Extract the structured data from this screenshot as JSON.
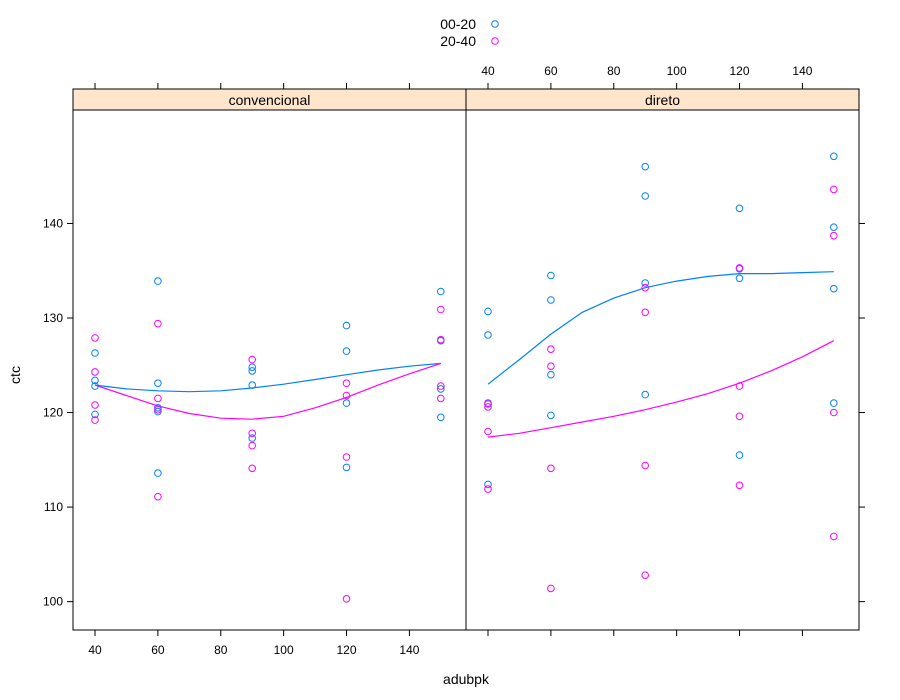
{
  "chart_data": {
    "type": "scatter",
    "xlabel": "adubpk",
    "ylabel": "ctc",
    "xlim": [
      33,
      158
    ],
    "ylim": [
      97,
      152
    ],
    "x_ticks": [
      40,
      60,
      80,
      100,
      120,
      140
    ],
    "y_ticks": [
      100,
      110,
      120,
      130,
      140
    ],
    "grid": false,
    "legend_placement": "top",
    "series": [
      {
        "name": "00-20",
        "color": "#0080ff"
      },
      {
        "name": "20-40",
        "color": "#ff00ff"
      }
    ],
    "panels": [
      {
        "strip": "convencional",
        "points": {
          "00-20": [
            [
              40,
              126.3
            ],
            [
              40,
              123.4
            ],
            [
              40,
              122.8
            ],
            [
              40,
              119.8
            ],
            [
              60,
              133.9
            ],
            [
              60,
              123.1
            ],
            [
              60,
              120.5
            ],
            [
              60,
              120.1
            ],
            [
              60,
              113.6
            ],
            [
              90,
              124.8
            ],
            [
              90,
              124.4
            ],
            [
              90,
              122.9
            ],
            [
              90,
              117.3
            ],
            [
              120,
              129.2
            ],
            [
              120,
              126.5
            ],
            [
              120,
              121.0
            ],
            [
              120,
              114.2
            ],
            [
              150,
              132.8
            ],
            [
              150,
              127.6
            ],
            [
              150,
              122.5
            ],
            [
              150,
              119.5
            ]
          ],
          "20-40": [
            [
              40,
              127.9
            ],
            [
              40,
              124.3
            ],
            [
              40,
              120.8
            ],
            [
              40,
              119.2
            ],
            [
              60,
              129.4
            ],
            [
              60,
              121.5
            ],
            [
              60,
              120.3
            ],
            [
              60,
              111.1
            ],
            [
              90,
              125.6
            ],
            [
              90,
              117.8
            ],
            [
              90,
              116.5
            ],
            [
              90,
              114.1
            ],
            [
              120,
              123.1
            ],
            [
              120,
              121.8
            ],
            [
              120,
              115.3
            ],
            [
              120,
              100.3
            ],
            [
              150,
              130.9
            ],
            [
              150,
              127.7
            ],
            [
              150,
              122.8
            ],
            [
              150,
              121.5
            ]
          ]
        },
        "smooth": {
          "00-20": [
            [
              40,
              122.9
            ],
            [
              50,
              122.5
            ],
            [
              60,
              122.3
            ],
            [
              70,
              122.2
            ],
            [
              80,
              122.3
            ],
            [
              90,
              122.6
            ],
            [
              100,
              123.0
            ],
            [
              110,
              123.5
            ],
            [
              120,
              124.0
            ],
            [
              130,
              124.5
            ],
            [
              140,
              124.9
            ],
            [
              150,
              125.2
            ]
          ],
          "20-40": [
            [
              40,
              122.9
            ],
            [
              50,
              121.8
            ],
            [
              60,
              120.7
            ],
            [
              70,
              119.9
            ],
            [
              80,
              119.4
            ],
            [
              90,
              119.3
            ],
            [
              100,
              119.6
            ],
            [
              110,
              120.5
            ],
            [
              120,
              121.6
            ],
            [
              130,
              122.9
            ],
            [
              140,
              124.1
            ],
            [
              150,
              125.2
            ]
          ]
        }
      },
      {
        "strip": "direto",
        "points": {
          "00-20": [
            [
              40,
              130.7
            ],
            [
              40,
              128.2
            ],
            [
              40,
              120.9
            ],
            [
              40,
              112.4
            ],
            [
              60,
              134.5
            ],
            [
              60,
              131.9
            ],
            [
              60,
              124.0
            ],
            [
              60,
              119.7
            ],
            [
              90,
              146.0
            ],
            [
              90,
              142.9
            ],
            [
              90,
              133.7
            ],
            [
              90,
              121.9
            ],
            [
              120,
              141.6
            ],
            [
              120,
              135.2
            ],
            [
              120,
              134.2
            ],
            [
              120,
              115.5
            ],
            [
              150,
              147.1
            ],
            [
              150,
              139.6
            ],
            [
              150,
              133.1
            ],
            [
              150,
              121.0
            ]
          ],
          "20-40": [
            [
              40,
              121.0
            ],
            [
              40,
              120.6
            ],
            [
              40,
              118.0
            ],
            [
              40,
              111.9
            ],
            [
              60,
              126.7
            ],
            [
              60,
              124.9
            ],
            [
              60,
              114.1
            ],
            [
              60,
              101.4
            ],
            [
              90,
              133.2
            ],
            [
              90,
              130.6
            ],
            [
              90,
              114.4
            ],
            [
              90,
              102.8
            ],
            [
              120,
              135.3
            ],
            [
              120,
              122.8
            ],
            [
              120,
              119.6
            ],
            [
              120,
              112.3
            ],
            [
              150,
              143.6
            ],
            [
              150,
              138.7
            ],
            [
              150,
              120.0
            ],
            [
              150,
              106.9
            ]
          ]
        },
        "smooth": {
          "00-20": [
            [
              40,
              123.0
            ],
            [
              50,
              125.6
            ],
            [
              60,
              128.3
            ],
            [
              70,
              130.6
            ],
            [
              80,
              132.1
            ],
            [
              90,
              133.2
            ],
            [
              100,
              133.9
            ],
            [
              110,
              134.4
            ],
            [
              120,
              134.7
            ],
            [
              130,
              134.7
            ],
            [
              140,
              134.8
            ],
            [
              150,
              134.9
            ]
          ],
          "20-40": [
            [
              40,
              117.4
            ],
            [
              50,
              117.8
            ],
            [
              60,
              118.4
            ],
            [
              70,
              119.0
            ],
            [
              80,
              119.6
            ],
            [
              90,
              120.3
            ],
            [
              100,
              121.1
            ],
            [
              110,
              122.0
            ],
            [
              120,
              123.1
            ],
            [
              130,
              124.4
            ],
            [
              140,
              125.9
            ],
            [
              150,
              127.6
            ]
          ]
        }
      }
    ]
  }
}
